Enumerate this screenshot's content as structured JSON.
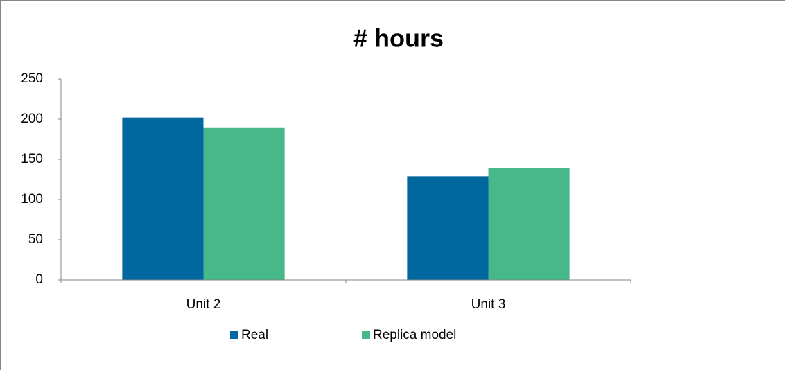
{
  "chart_data": {
    "type": "bar",
    "title": "# hours",
    "categories": [
      "Unit 2",
      "Unit 3"
    ],
    "series": [
      {
        "name": "Real",
        "color": "#00679f",
        "values": [
          202,
          129
        ]
      },
      {
        "name": "Replica model",
        "color": "#47b88a",
        "values": [
          189,
          139
        ]
      }
    ],
    "ylim": [
      0,
      250
    ],
    "yticks": [
      0,
      50,
      100,
      150,
      200,
      250
    ],
    "grid": false,
    "legend": "bottom"
  }
}
